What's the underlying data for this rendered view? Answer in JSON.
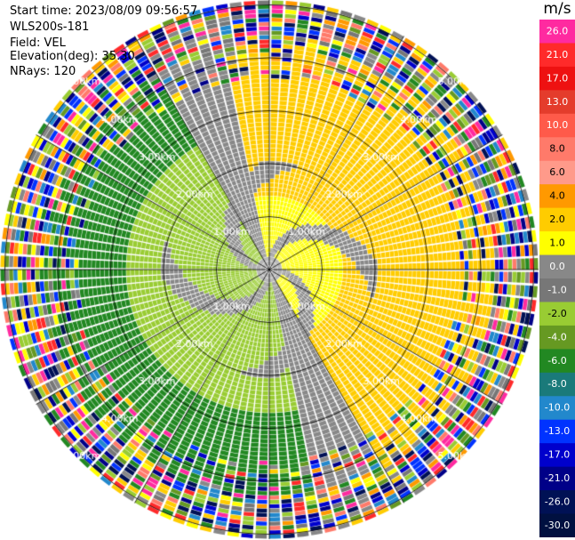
{
  "info": {
    "start_time": "Start time: 2023/08/09 09:56:57",
    "station": "WLS200s-181",
    "field": "Field: VEL",
    "elevation": "Elevation(deg): 35.30",
    "nrays": "NRays: 120"
  },
  "chart_data": {
    "type": "ppi",
    "field": "VEL",
    "units": "m/s",
    "nrays": 120,
    "elevation_deg": 35.3,
    "range_rings_km": [
      1,
      2,
      3,
      4,
      5
    ],
    "ring_labels": [
      "1.00km",
      "2.00km",
      "3.00km",
      "4.00km",
      "5.00km"
    ],
    "colorbar": {
      "unit_label": "m/s",
      "ticks": [
        "26.0",
        "21.0",
        "17.0",
        "13.0",
        "10.0",
        "8.0",
        "6.0",
        "4.0",
        "2.0",
        "1.0",
        "0.0",
        "-1.0",
        "-2.0",
        "-4.0",
        "-6.0",
        "-8.0",
        "-10.0",
        "-13.0",
        "-17.0",
        "-21.0",
        "-26.0",
        "-30.0"
      ],
      "colors": [
        "#ff2aa0",
        "#ff2a2a",
        "#ee1111",
        "#e43c2c",
        "#ff5a4a",
        "#ff7a6a",
        "#ff9a8a",
        "#ff9900",
        "#ffcc00",
        "#ffff00",
        "#888888",
        "#777777",
        "#99cc33",
        "#669922",
        "#228822",
        "#1a7a7a",
        "#2288cc",
        "#0033ff",
        "#0000cc",
        "#000088",
        "#001155",
        "#001040"
      ]
    }
  }
}
